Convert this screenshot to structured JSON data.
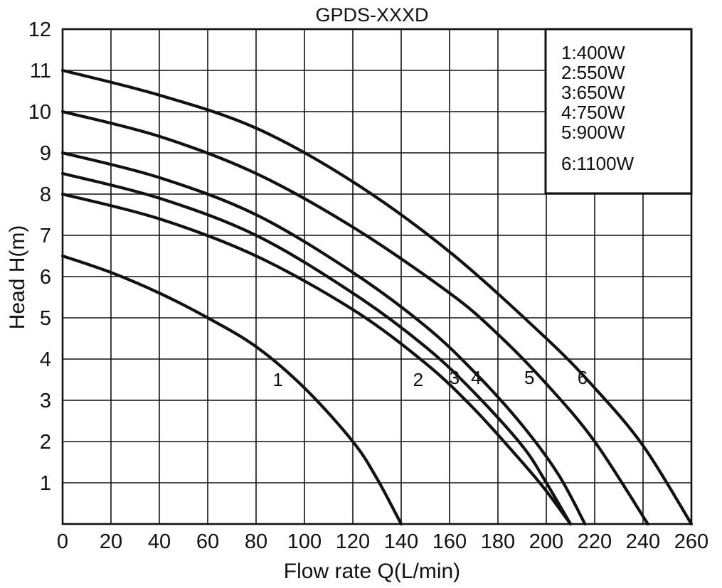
{
  "chart_data": {
    "type": "line",
    "title": "GPDS-XXXD",
    "xlabel": "Flow rate Q(L/min)",
    "ylabel": "Head H(m)",
    "xlim": [
      0,
      260
    ],
    "ylim": [
      0,
      12
    ],
    "x_ticks": [
      0,
      20,
      40,
      60,
      80,
      100,
      120,
      140,
      160,
      180,
      200,
      220,
      240,
      260
    ],
    "y_ticks": [
      1,
      2,
      3,
      4,
      5,
      6,
      7,
      8,
      9,
      10,
      11,
      12
    ],
    "grid": true,
    "legend_position": "top-right",
    "legend": [
      "1:400W",
      "2:550W",
      "3:650W",
      "4:750W",
      "5:900W",
      "6:1100W"
    ],
    "series": [
      {
        "name": "1",
        "x": [
          0,
          20,
          40,
          60,
          80,
          100,
          120,
          130,
          140
        ],
        "y": [
          6.5,
          6.1,
          5.6,
          5.0,
          4.3,
          3.3,
          2.0,
          1.1,
          0.0
        ]
      },
      {
        "name": "2",
        "x": [
          0,
          40,
          80,
          120,
          150,
          170,
          190,
          200,
          210
        ],
        "y": [
          8.0,
          7.4,
          6.5,
          5.2,
          3.9,
          2.8,
          1.5,
          0.8,
          0.0
        ]
      },
      {
        "name": "3",
        "x": [
          0,
          40,
          80,
          120,
          150,
          170,
          190,
          200,
          210
        ],
        "y": [
          8.5,
          7.9,
          7.0,
          5.6,
          4.3,
          3.2,
          1.9,
          1.0,
          0.0
        ]
      },
      {
        "name": "4",
        "x": [
          0,
          40,
          80,
          120,
          150,
          170,
          190,
          205,
          216
        ],
        "y": [
          9.0,
          8.4,
          7.5,
          6.1,
          4.8,
          3.7,
          2.4,
          1.2,
          0.0
        ]
      },
      {
        "name": "5",
        "x": [
          0,
          40,
          80,
          120,
          160,
          180,
          200,
          220,
          242
        ],
        "y": [
          10.0,
          9.4,
          8.5,
          7.2,
          5.6,
          4.6,
          3.4,
          2.0,
          0.0
        ]
      },
      {
        "name": "6",
        "x": [
          0,
          40,
          80,
          120,
          160,
          200,
          220,
          240,
          260
        ],
        "y": [
          11.0,
          10.4,
          9.6,
          8.3,
          6.6,
          4.5,
          3.3,
          1.9,
          0.0
        ]
      }
    ],
    "curve_labels": [
      {
        "text": "1",
        "x": 89,
        "y": 3.5
      },
      {
        "text": "2",
        "x": 147,
        "y": 3.5
      },
      {
        "text": "3",
        "x": 162,
        "y": 3.55
      },
      {
        "text": "4",
        "x": 171,
        "y": 3.55
      },
      {
        "text": "5",
        "x": 193,
        "y": 3.55
      },
      {
        "text": "6",
        "x": 215,
        "y": 3.55
      }
    ]
  }
}
